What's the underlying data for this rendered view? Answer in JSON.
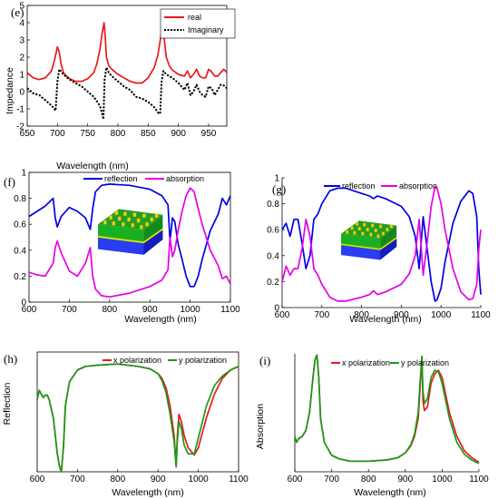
{
  "chart_data": [
    {
      "id": "e",
      "type": "line",
      "panel_label": "(e)",
      "xlabel": "Wavelength (nm)",
      "ylabel": "Impedance",
      "xlim": [
        650,
        980
      ],
      "ylim": [
        -2,
        5
      ],
      "xticks": [
        "650",
        "700",
        "750",
        "800",
        "850",
        "900",
        "950"
      ],
      "xtick_values": [
        650,
        700,
        750,
        800,
        850,
        900,
        950
      ],
      "yticks": [
        "-2",
        "-1",
        "0",
        "1",
        "2",
        "3",
        "4",
        "5"
      ],
      "ytick_values": [
        -2,
        -1,
        0,
        1,
        2,
        3,
        4,
        5
      ],
      "legend_position": "top-right",
      "series": [
        {
          "name": "real",
          "color": "#e8191e",
          "dash": "solid",
          "x": [
            650,
            660,
            670,
            680,
            690,
            695,
            700,
            703,
            706,
            710,
            715,
            720,
            730,
            740,
            750,
            760,
            765,
            770,
            774,
            777,
            779,
            781,
            785,
            790,
            800,
            810,
            820,
            830,
            840,
            850,
            860,
            866,
            870,
            873,
            876,
            880,
            885,
            890,
            900,
            910,
            915,
            920,
            925,
            930,
            935,
            940,
            945,
            950,
            955,
            960,
            965,
            970,
            975,
            980
          ],
          "y": [
            1.1,
            0.8,
            0.7,
            0.8,
            1.2,
            1.8,
            2.6,
            2.3,
            1.6,
            1.1,
            0.9,
            0.75,
            0.6,
            0.6,
            0.75,
            1.1,
            1.6,
            2.4,
            3.4,
            4.0,
            3.2,
            2.0,
            1.5,
            1.3,
            1.0,
            0.8,
            0.6,
            0.5,
            0.5,
            0.8,
            1.4,
            2.1,
            3.0,
            3.6,
            3.2,
            2.0,
            1.5,
            1.25,
            1.0,
            0.9,
            1.2,
            0.8,
            1.0,
            1.3,
            0.9,
            0.8,
            0.8,
            1.3,
            1.15,
            0.9,
            0.9,
            1.1,
            1.3,
            1.1
          ]
        },
        {
          "name": "Imaginary",
          "color": "#000000",
          "dash": "dotted",
          "x": [
            650,
            660,
            670,
            680,
            690,
            697,
            700,
            703,
            710,
            720,
            730,
            740,
            750,
            760,
            770,
            774,
            776,
            778,
            781,
            785,
            790,
            800,
            810,
            820,
            830,
            840,
            850,
            860,
            868,
            870,
            872,
            875,
            880,
            890,
            900,
            910,
            915,
            920,
            925,
            930,
            935,
            940,
            945,
            950,
            955,
            960,
            965,
            970,
            975,
            980
          ],
          "y": [
            0.2,
            -0.1,
            -0.2,
            -0.5,
            -0.8,
            -1.1,
            0.6,
            1.3,
            1.0,
            0.7,
            0.5,
            0.3,
            0.0,
            -0.3,
            -0.8,
            -1.3,
            -1.6,
            0.7,
            1.4,
            1.1,
            0.9,
            0.6,
            0.3,
            0.1,
            -0.3,
            -0.4,
            -0.6,
            -0.9,
            -1.3,
            -1.2,
            0.5,
            1.2,
            1.0,
            0.8,
            0.5,
            0.1,
            0.5,
            -0.2,
            0.0,
            0.4,
            0.0,
            -0.2,
            -0.3,
            0.3,
            0.2,
            -0.2,
            0.1,
            0.4,
            0.35,
            0.2
          ]
        }
      ]
    },
    {
      "id": "f",
      "type": "line",
      "panel_label": "(f)",
      "xlabel": "Wavelength (nm)",
      "ylabel": "",
      "xlim": [
        600,
        1100
      ],
      "ylim": [
        0,
        1
      ],
      "xticks": [
        "600",
        "700",
        "800",
        "900",
        "1000",
        "1100"
      ],
      "xtick_values": [
        600,
        700,
        800,
        900,
        1000,
        1100
      ],
      "yticks": [
        "0",
        "0.2",
        "0.4",
        "0.6",
        "0.8",
        "1"
      ],
      "ytick_values": [
        0,
        0.2,
        0.4,
        0.6,
        0.8,
        1
      ],
      "legend_position": "top",
      "has_inset": true,
      "series": [
        {
          "name": "reflection",
          "color": "#0000e6",
          "dash": "solid",
          "x": [
            600,
            620,
            640,
            660,
            665,
            670,
            680,
            700,
            720,
            740,
            752,
            758,
            765,
            780,
            800,
            850,
            900,
            930,
            945,
            950,
            956,
            962,
            970,
            980,
            990,
            1000,
            1010,
            1020,
            1030,
            1050,
            1070,
            1080,
            1090,
            1100
          ],
          "y": [
            0.66,
            0.7,
            0.74,
            0.8,
            0.65,
            0.58,
            0.66,
            0.73,
            0.7,
            0.65,
            0.56,
            0.72,
            0.85,
            0.9,
            0.91,
            0.9,
            0.87,
            0.82,
            0.75,
            0.47,
            0.65,
            0.62,
            0.45,
            0.33,
            0.2,
            0.12,
            0.12,
            0.2,
            0.33,
            0.55,
            0.68,
            0.8,
            0.75,
            0.82
          ]
        },
        {
          "name": "absorption",
          "color": "#e600e6",
          "dash": "solid",
          "x": [
            600,
            620,
            640,
            660,
            665,
            670,
            680,
            700,
            720,
            740,
            752,
            758,
            765,
            780,
            800,
            850,
            900,
            930,
            945,
            950,
            956,
            962,
            970,
            980,
            990,
            1000,
            1010,
            1020,
            1030,
            1050,
            1070,
            1080,
            1090,
            1100
          ],
          "y": [
            0.23,
            0.21,
            0.2,
            0.3,
            0.42,
            0.47,
            0.38,
            0.24,
            0.2,
            0.3,
            0.42,
            0.2,
            0.1,
            0.05,
            0.04,
            0.07,
            0.12,
            0.17,
            0.25,
            0.5,
            0.35,
            0.4,
            0.55,
            0.7,
            0.82,
            0.88,
            0.85,
            0.72,
            0.6,
            0.4,
            0.28,
            0.18,
            0.2,
            0.14
          ]
        }
      ]
    },
    {
      "id": "g",
      "type": "line",
      "panel_label": "(g)",
      "xlabel": "Wavelength (nm)",
      "ylabel": "",
      "xlim": [
        600,
        1100
      ],
      "ylim": [
        0,
        1
      ],
      "xticks": [
        "600",
        "700",
        "800",
        "900",
        "1000",
        "1100"
      ],
      "xtick_values": [
        600,
        700,
        800,
        900,
        1000,
        1100
      ],
      "yticks": [
        "0",
        "0.2",
        "0.4",
        "0.6",
        "0.8",
        "1"
      ],
      "ytick_values": [
        0,
        0.2,
        0.4,
        0.6,
        0.8,
        1
      ],
      "legend_position": "top",
      "has_inset": true,
      "series": [
        {
          "name": "reflection",
          "color": "#0000e6",
          "dash": "solid",
          "x": [
            600,
            610,
            620,
            630,
            640,
            650,
            660,
            670,
            680,
            690,
            700,
            720,
            740,
            760,
            800,
            820,
            830,
            840,
            860,
            900,
            920,
            935,
            945,
            955,
            965,
            975,
            985,
            990,
            1000,
            1010,
            1030,
            1050,
            1070,
            1080,
            1090,
            1095,
            1100
          ],
          "y": [
            0.6,
            0.65,
            0.55,
            0.68,
            0.68,
            0.5,
            0.3,
            0.4,
            0.68,
            0.72,
            0.8,
            0.9,
            0.92,
            0.92,
            0.88,
            0.86,
            0.84,
            0.86,
            0.84,
            0.78,
            0.7,
            0.55,
            0.3,
            0.7,
            0.45,
            0.2,
            0.05,
            0.06,
            0.15,
            0.35,
            0.65,
            0.82,
            0.9,
            0.88,
            0.7,
            0.3,
            0.1
          ]
        },
        {
          "name": "absorption",
          "color": "#e600e6",
          "dash": "solid",
          "x": [
            600,
            610,
            620,
            630,
            640,
            650,
            660,
            670,
            680,
            690,
            700,
            720,
            740,
            760,
            800,
            820,
            830,
            840,
            860,
            900,
            920,
            935,
            945,
            955,
            965,
            975,
            985,
            990,
            1000,
            1010,
            1030,
            1050,
            1070,
            1080,
            1090,
            1095,
            1100
          ],
          "y": [
            0.2,
            0.32,
            0.25,
            0.3,
            0.3,
            0.45,
            0.68,
            0.55,
            0.3,
            0.25,
            0.18,
            0.08,
            0.05,
            0.05,
            0.08,
            0.1,
            0.13,
            0.1,
            0.12,
            0.18,
            0.26,
            0.4,
            0.68,
            0.25,
            0.5,
            0.78,
            0.93,
            0.92,
            0.8,
            0.6,
            0.3,
            0.12,
            0.06,
            0.07,
            0.18,
            0.45,
            0.6
          ]
        }
      ]
    },
    {
      "id": "h",
      "type": "line",
      "panel_label": "(h)",
      "xlabel": "Wavelength (nm)",
      "ylabel": "Reflection",
      "xlim": [
        600,
        1100
      ],
      "ylim": [
        0,
        1
      ],
      "xticks": [
        "600",
        "700",
        "800",
        "900",
        "1000",
        "1100"
      ],
      "xtick_values": [
        600,
        700,
        800,
        900,
        1000,
        1100
      ],
      "yticks": [],
      "ytick_values": [],
      "legend_position": "top",
      "series": [
        {
          "name": "x polarization",
          "color": "#e8191e",
          "dash": "solid",
          "x": [
            600,
            605,
            610,
            615,
            620,
            625,
            630,
            640,
            650,
            655,
            660,
            665,
            670,
            680,
            700,
            720,
            750,
            800,
            850,
            880,
            900,
            910,
            920,
            930,
            940,
            945,
            948,
            952,
            958,
            965,
            975,
            990,
            1000,
            1020,
            1040,
            1060,
            1080,
            1100
          ],
          "y": [
            0.6,
            0.68,
            0.65,
            0.62,
            0.64,
            0.64,
            0.6,
            0.45,
            0.15,
            0.05,
            0.0,
            0.2,
            0.55,
            0.75,
            0.85,
            0.88,
            0.89,
            0.9,
            0.88,
            0.86,
            0.82,
            0.78,
            0.7,
            0.55,
            0.3,
            0.05,
            0.3,
            0.48,
            0.42,
            0.3,
            0.2,
            0.14,
            0.2,
            0.45,
            0.65,
            0.78,
            0.85,
            0.88
          ]
        },
        {
          "name": "y polarization",
          "color": "#1a9a1a",
          "dash": "solid",
          "x": [
            600,
            605,
            610,
            615,
            620,
            625,
            630,
            640,
            650,
            655,
            660,
            665,
            670,
            680,
            700,
            720,
            750,
            800,
            850,
            880,
            900,
            910,
            920,
            930,
            940,
            945,
            948,
            952,
            958,
            965,
            975,
            990,
            1000,
            1020,
            1040,
            1060,
            1080,
            1100
          ],
          "y": [
            0.6,
            0.68,
            0.65,
            0.62,
            0.64,
            0.64,
            0.6,
            0.45,
            0.15,
            0.05,
            0.0,
            0.2,
            0.55,
            0.75,
            0.85,
            0.88,
            0.89,
            0.9,
            0.88,
            0.86,
            0.82,
            0.76,
            0.66,
            0.48,
            0.25,
            0.04,
            0.25,
            0.42,
            0.36,
            0.22,
            0.15,
            0.15,
            0.28,
            0.55,
            0.72,
            0.8,
            0.85,
            0.88
          ]
        }
      ]
    },
    {
      "id": "i",
      "type": "line",
      "panel_label": "(i)",
      "xlabel": "Wavelength (nm)",
      "ylabel": "Absorption",
      "xlim": [
        600,
        1100
      ],
      "ylim": [
        0,
        1
      ],
      "xticks": [
        "600",
        "700",
        "800",
        "900",
        "1000",
        "1100"
      ],
      "xtick_values": [
        600,
        700,
        800,
        900,
        1000,
        1100
      ],
      "yticks": [],
      "ytick_values": [],
      "legend_position": "top",
      "series": [
        {
          "name": "x polarization",
          "color": "#e8191e",
          "dash": "solid",
          "x": [
            600,
            605,
            610,
            620,
            630,
            640,
            650,
            655,
            660,
            665,
            670,
            680,
            700,
            720,
            750,
            800,
            850,
            880,
            900,
            915,
            925,
            935,
            940,
            945,
            948,
            952,
            960,
            970,
            980,
            990,
            1000,
            1020,
            1040,
            1060,
            1080,
            1100
          ],
          "y": [
            0.3,
            0.25,
            0.28,
            0.3,
            0.35,
            0.5,
            0.82,
            0.95,
            0.99,
            0.8,
            0.45,
            0.25,
            0.14,
            0.11,
            0.09,
            0.09,
            0.1,
            0.12,
            0.16,
            0.22,
            0.3,
            0.45,
            0.7,
            0.97,
            0.6,
            0.52,
            0.55,
            0.75,
            0.83,
            0.86,
            0.8,
            0.5,
            0.3,
            0.18,
            0.12,
            0.08
          ]
        },
        {
          "name": "y polarization",
          "color": "#1a9a1a",
          "dash": "solid",
          "x": [
            600,
            605,
            610,
            620,
            630,
            640,
            650,
            655,
            660,
            665,
            670,
            680,
            700,
            720,
            750,
            800,
            850,
            880,
            900,
            915,
            925,
            935,
            940,
            945,
            948,
            952,
            960,
            970,
            980,
            990,
            1000,
            1020,
            1040,
            1060,
            1080,
            1100
          ],
          "y": [
            0.3,
            0.25,
            0.28,
            0.3,
            0.35,
            0.5,
            0.82,
            0.95,
            0.99,
            0.8,
            0.45,
            0.25,
            0.14,
            0.11,
            0.09,
            0.09,
            0.1,
            0.12,
            0.16,
            0.23,
            0.32,
            0.5,
            0.75,
            0.98,
            0.68,
            0.58,
            0.62,
            0.8,
            0.86,
            0.85,
            0.75,
            0.45,
            0.25,
            0.15,
            0.1,
            0.07
          ]
        }
      ]
    }
  ]
}
